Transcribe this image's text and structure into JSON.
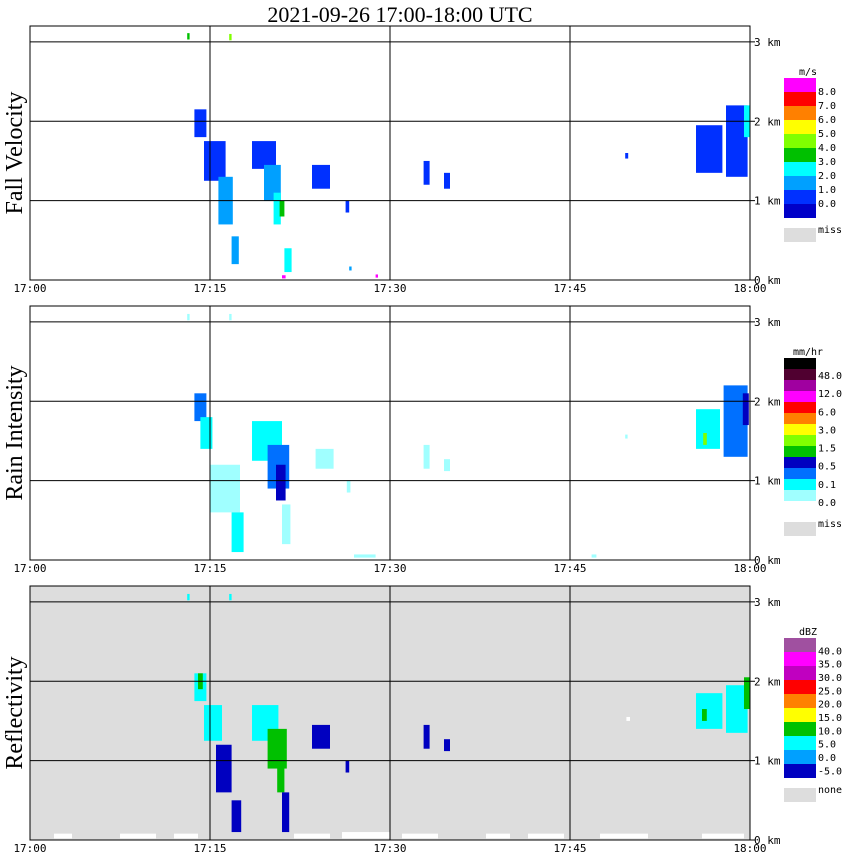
{
  "title": "2021-09-26   17:00-18:00 UTC",
  "chart_data": [
    {
      "type": "heatmap",
      "ylabel": "Fall Velocity",
      "x_ticks": [
        "17:00",
        "17:15",
        "17:30",
        "17:45",
        "18:00"
      ],
      "y_ticks": [
        "0 km",
        "1 km",
        "2 km",
        "3 km"
      ],
      "xlim_minutes": [
        0,
        60
      ],
      "ylim_km": [
        0,
        3.2
      ],
      "grid": true,
      "background": "#ffffff",
      "legend": {
        "unit": "m/s",
        "labels": [
          "8.0",
          "7.0",
          "6.0",
          "5.0",
          "4.0",
          "3.0",
          "2.0",
          "1.0",
          "0.0"
        ],
        "colors": [
          "#ff00ff",
          "#ff0000",
          "#ff8000",
          "#ffff00",
          "#80ff00",
          "#00c000",
          "#00ffff",
          "#00a0ff",
          "#0030ff",
          "#0000c8"
        ],
        "miss_label": "miss",
        "miss_color": "#dddddd"
      },
      "features": [
        {
          "t": 13.7,
          "h": 1.8,
          "dt": 1.0,
          "dh": 0.35,
          "c": 8
        },
        {
          "t": 14.5,
          "h": 1.25,
          "dt": 1.8,
          "dh": 0.5,
          "c": 8
        },
        {
          "t": 15.7,
          "h": 0.7,
          "dt": 1.2,
          "dh": 0.6,
          "c": 7
        },
        {
          "t": 16.8,
          "h": 0.2,
          "dt": 0.6,
          "dh": 0.35,
          "c": 7
        },
        {
          "t": 18.5,
          "h": 1.4,
          "dt": 2.0,
          "dh": 0.35,
          "c": 8
        },
        {
          "t": 19.5,
          "h": 1.0,
          "dt": 1.4,
          "dh": 0.45,
          "c": 7
        },
        {
          "t": 20.3,
          "h": 0.7,
          "dt": 0.6,
          "dh": 0.4,
          "c": 6
        },
        {
          "t": 20.8,
          "h": 0.8,
          "dt": 0.4,
          "dh": 0.2,
          "c": 5
        },
        {
          "t": 21.2,
          "h": 0.1,
          "dt": 0.6,
          "dh": 0.3,
          "c": 6
        },
        {
          "t": 21.0,
          "h": 0.02,
          "dt": 0.3,
          "dh": 0.04,
          "c": 0
        },
        {
          "t": 23.5,
          "h": 1.15,
          "dt": 1.5,
          "dh": 0.3,
          "c": 8
        },
        {
          "t": 26.3,
          "h": 0.85,
          "dt": 0.3,
          "dh": 0.15,
          "c": 8
        },
        {
          "t": 26.6,
          "h": 0.12,
          "dt": 0.2,
          "dh": 0.05,
          "c": 7
        },
        {
          "t": 28.8,
          "h": 0.03,
          "dt": 0.2,
          "dh": 0.04,
          "c": 0
        },
        {
          "t": 32.8,
          "h": 1.2,
          "dt": 0.5,
          "dh": 0.3,
          "c": 8
        },
        {
          "t": 34.5,
          "h": 1.15,
          "dt": 0.5,
          "dh": 0.2,
          "c": 8
        },
        {
          "t": 49.6,
          "h": 1.53,
          "dt": 0.25,
          "dh": 0.07,
          "c": 8
        },
        {
          "t": 55.5,
          "h": 1.35,
          "dt": 2.2,
          "dh": 0.6,
          "c": 8
        },
        {
          "t": 58.0,
          "h": 1.3,
          "dt": 1.8,
          "dh": 0.9,
          "c": 8
        },
        {
          "t": 59.5,
          "h": 1.8,
          "dt": 0.5,
          "dh": 0.4,
          "c": 6
        },
        {
          "t": 13.1,
          "h": 3.03,
          "dt": 0.2,
          "dh": 0.08,
          "c": 5
        },
        {
          "t": 16.6,
          "h": 3.02,
          "dt": 0.2,
          "dh": 0.08,
          "c": 4
        }
      ]
    },
    {
      "type": "heatmap",
      "ylabel": "Rain Intensity",
      "x_ticks": [
        "17:00",
        "17:15",
        "17:30",
        "17:45",
        "18:00"
      ],
      "y_ticks": [
        "0 km",
        "1 km",
        "2 km",
        "3 km"
      ],
      "xlim_minutes": [
        0,
        60
      ],
      "ylim_km": [
        0,
        3.2
      ],
      "grid": true,
      "background": "#ffffff",
      "legend": {
        "unit": "mm/hr",
        "labels": [
          "48.0",
          "12.0",
          "6.0",
          "3.0",
          "1.5",
          "0.5",
          "0.1",
          "0.0"
        ],
        "colors": [
          "#000000",
          "#500030",
          "#a000a0",
          "#ff00ff",
          "#ff0000",
          "#ff8000",
          "#ffff00",
          "#80ff00",
          "#00c000",
          "#0000c0",
          "#0070ff",
          "#00ffff",
          "#a0ffff",
          "#ffffff"
        ],
        "miss_label": "miss",
        "miss_color": "#dddddd"
      },
      "features": [
        {
          "t": 13.7,
          "h": 1.75,
          "dt": 1.0,
          "dh": 0.35,
          "c": 10
        },
        {
          "t": 14.2,
          "h": 1.4,
          "dt": 1.0,
          "dh": 0.4,
          "c": 11
        },
        {
          "t": 15.0,
          "h": 0.6,
          "dt": 2.5,
          "dh": 0.6,
          "c": 12
        },
        {
          "t": 16.8,
          "h": 0.1,
          "dt": 1.0,
          "dh": 0.5,
          "c": 11
        },
        {
          "t": 18.5,
          "h": 1.25,
          "dt": 2.5,
          "dh": 0.5,
          "c": 11
        },
        {
          "t": 19.8,
          "h": 0.9,
          "dt": 1.8,
          "dh": 0.55,
          "c": 10
        },
        {
          "t": 20.5,
          "h": 0.75,
          "dt": 0.8,
          "dh": 0.45,
          "c": 9
        },
        {
          "t": 21.0,
          "h": 0.2,
          "dt": 0.7,
          "dh": 0.5,
          "c": 12
        },
        {
          "t": 23.8,
          "h": 1.15,
          "dt": 1.5,
          "dh": 0.25,
          "c": 12
        },
        {
          "t": 26.4,
          "h": 0.85,
          "dt": 0.3,
          "dh": 0.15,
          "c": 12
        },
        {
          "t": 27.0,
          "h": 0.03,
          "dt": 1.8,
          "dh": 0.04,
          "c": 12
        },
        {
          "t": 32.8,
          "h": 1.15,
          "dt": 0.5,
          "dh": 0.3,
          "c": 12
        },
        {
          "t": 34.5,
          "h": 1.12,
          "dt": 0.5,
          "dh": 0.15,
          "c": 12
        },
        {
          "t": 49.6,
          "h": 1.53,
          "dt": 0.2,
          "dh": 0.05,
          "c": 12
        },
        {
          "t": 46.8,
          "h": 0.03,
          "dt": 0.4,
          "dh": 0.04,
          "c": 12
        },
        {
          "t": 55.5,
          "h": 1.4,
          "dt": 2.0,
          "dh": 0.5,
          "c": 11
        },
        {
          "t": 57.8,
          "h": 1.3,
          "dt": 2.0,
          "dh": 0.9,
          "c": 10
        },
        {
          "t": 59.4,
          "h": 1.7,
          "dt": 0.5,
          "dh": 0.4,
          "c": 9
        },
        {
          "t": 56.1,
          "h": 1.45,
          "dt": 0.3,
          "dh": 0.15,
          "c": 7
        },
        {
          "t": 13.1,
          "h": 3.02,
          "dt": 0.2,
          "dh": 0.08,
          "c": 12
        },
        {
          "t": 16.6,
          "h": 3.02,
          "dt": 0.2,
          "dh": 0.08,
          "c": 12
        }
      ]
    },
    {
      "type": "heatmap",
      "ylabel": "Reflectivity",
      "x_ticks": [
        "17:00",
        "17:15",
        "17:30",
        "17:45",
        "18:00"
      ],
      "y_ticks": [
        "0 km",
        "1 km",
        "2 km",
        "3 km"
      ],
      "xlim_minutes": [
        0,
        60
      ],
      "ylim_km": [
        0,
        3.2
      ],
      "grid": true,
      "background": "#dddddd",
      "legend": {
        "unit": "dBZ",
        "labels": [
          "40.0",
          "35.0",
          "30.0",
          "25.0",
          "20.0",
          "15.0",
          "10.0",
          "5.0",
          "0.0",
          "-5.0"
        ],
        "colors": [
          "#a050a0",
          "#ff00ff",
          "#c000c0",
          "#ff0000",
          "#ff8000",
          "#ffff00",
          "#00c000",
          "#00ffff",
          "#00a0ff",
          "#0000c0"
        ],
        "miss_label": "none",
        "miss_color": "#dddddd"
      },
      "features": [
        {
          "t": 13.7,
          "h": 1.75,
          "dt": 1.0,
          "dh": 0.35,
          "c": 7
        },
        {
          "t": 14.0,
          "h": 1.9,
          "dt": 0.4,
          "dh": 0.2,
          "c": 6
        },
        {
          "t": 14.5,
          "h": 1.25,
          "dt": 1.5,
          "dh": 0.45,
          "c": 7
        },
        {
          "t": 15.5,
          "h": 0.6,
          "dt": 1.3,
          "dh": 0.6,
          "c": 9
        },
        {
          "t": 16.8,
          "h": 0.1,
          "dt": 0.8,
          "dh": 0.4,
          "c": 9
        },
        {
          "t": 18.5,
          "h": 1.25,
          "dt": 2.2,
          "dh": 0.45,
          "c": 7
        },
        {
          "t": 19.8,
          "h": 0.9,
          "dt": 1.6,
          "dh": 0.5,
          "c": 6
        },
        {
          "t": 20.6,
          "h": 0.6,
          "dt": 0.6,
          "dh": 0.4,
          "c": 6
        },
        {
          "t": 21.0,
          "h": 0.1,
          "dt": 0.6,
          "dh": 0.5,
          "c": 9
        },
        {
          "t": 23.5,
          "h": 1.15,
          "dt": 1.5,
          "dh": 0.3,
          "c": 9
        },
        {
          "t": 26.3,
          "h": 0.85,
          "dt": 0.3,
          "dh": 0.15,
          "c": 9
        },
        {
          "t": 32.8,
          "h": 1.15,
          "dt": 0.5,
          "dh": 0.3,
          "c": 9
        },
        {
          "t": 34.5,
          "h": 1.12,
          "dt": 0.5,
          "dh": 0.15,
          "c": 9
        },
        {
          "t": 49.7,
          "h": 1.5,
          "dt": 0.3,
          "dh": 0.05,
          "c": 99
        },
        {
          "t": 55.5,
          "h": 1.4,
          "dt": 2.2,
          "dh": 0.45,
          "c": 7
        },
        {
          "t": 58.0,
          "h": 1.35,
          "dt": 1.8,
          "dh": 0.6,
          "c": 7
        },
        {
          "t": 59.5,
          "h": 1.65,
          "dt": 0.5,
          "dh": 0.4,
          "c": 6
        },
        {
          "t": 56.0,
          "h": 1.5,
          "dt": 0.4,
          "dh": 0.15,
          "c": 6
        },
        {
          "t": 13.1,
          "h": 3.02,
          "dt": 0.2,
          "dh": 0.08,
          "c": 7
        },
        {
          "t": 16.6,
          "h": 3.02,
          "dt": 0.2,
          "dh": 0.08,
          "c": 7
        },
        {
          "t": 2.0,
          "h": 0.02,
          "dt": 1.5,
          "dh": 0.06,
          "c": 99
        },
        {
          "t": 7.5,
          "h": 0.02,
          "dt": 3.0,
          "dh": 0.06,
          "c": 99
        },
        {
          "t": 12.0,
          "h": 0.02,
          "dt": 2.0,
          "dh": 0.06,
          "c": 99
        },
        {
          "t": 22.0,
          "h": 0.02,
          "dt": 3.0,
          "dh": 0.06,
          "c": 99
        },
        {
          "t": 26.0,
          "h": 0.02,
          "dt": 4.0,
          "dh": 0.08,
          "c": 99
        },
        {
          "t": 31.0,
          "h": 0.02,
          "dt": 3.0,
          "dh": 0.06,
          "c": 99
        },
        {
          "t": 38.0,
          "h": 0.02,
          "dt": 2.0,
          "dh": 0.06,
          "c": 99
        },
        {
          "t": 41.5,
          "h": 0.02,
          "dt": 3.0,
          "dh": 0.06,
          "c": 99
        },
        {
          "t": 47.5,
          "h": 0.02,
          "dt": 4.0,
          "dh": 0.06,
          "c": 99
        },
        {
          "t": 56.0,
          "h": 0.02,
          "dt": 3.5,
          "dh": 0.06,
          "c": 99
        }
      ]
    }
  ]
}
